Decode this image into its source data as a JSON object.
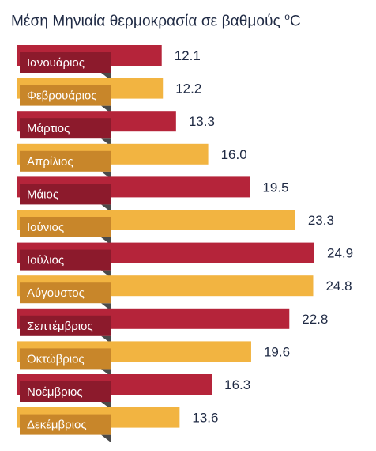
{
  "chart_data": {
    "type": "bar",
    "orientation": "horizontal",
    "title_prefix": "Μέση Μηνιαία θερμοκρασία σε βαθμούς ",
    "title_unit_sup": "o",
    "title_unit": "C",
    "categories": [
      "Ιανουάριος",
      "Φεβρουάριος",
      "Μάρτιος",
      "Απρίλιος",
      "Μάιος",
      "Ιούνιος",
      "Ιούλιος",
      "Αύγουστος",
      "Σεπτέμβριος",
      "Οκτώβριος",
      "Νοέμβριος",
      "Δεκέμβριος"
    ],
    "values": [
      12.1,
      12.2,
      13.3,
      16.0,
      19.5,
      23.3,
      24.9,
      24.8,
      22.8,
      19.6,
      16.3,
      13.6
    ],
    "value_labels": [
      "12.1",
      "12.2",
      "13.3",
      "16.0",
      "19.5",
      "23.3",
      "24.9",
      "24.8",
      "22.8",
      "19.6",
      "16.3",
      "13.6"
    ],
    "colors": {
      "odd_bar": "#b5243a",
      "odd_label": "#8c1a2c",
      "even_bar": "#f2b441",
      "even_label": "#c8862a",
      "fold_shadow": "#4a4a4a",
      "value_text": "#1f2a44"
    },
    "grid": false,
    "legend": "none"
  }
}
